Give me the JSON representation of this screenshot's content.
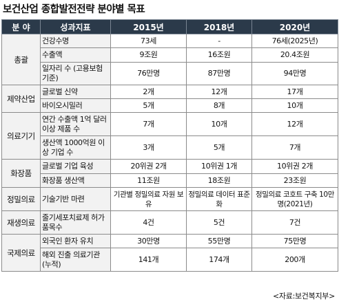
{
  "title": "보건산업 종합발전전략 분야별 목표",
  "headers": [
    "분 야",
    "성과지표",
    "2015년",
    "2018년",
    "2020년"
  ],
  "categories": [
    "총괄",
    "제약산업",
    "의료기기",
    "화장품",
    "정밀의료",
    "재생의료",
    "국제의료"
  ],
  "rows": [
    {
      "indicator": "건강수명",
      "y2015": "73세",
      "y2018": "-",
      "y2020": "76세(2025년)"
    },
    {
      "indicator": "수출액",
      "y2015": "9조원",
      "y2018": "16조원",
      "y2020": "20.4조원"
    },
    {
      "indicator": "일자리 수 (고용보험 기준)",
      "y2015": "76만명",
      "y2018": "87만명",
      "y2020": "94만명"
    },
    {
      "indicator": "글로벌 신약",
      "y2015": "2개",
      "y2018": "12개",
      "y2020": "17개"
    },
    {
      "indicator": "바이오시밀러",
      "y2015": "5개",
      "y2018": "8개",
      "y2020": "10개"
    },
    {
      "indicator": "연간 수출액 1억 달러 이상 제품 수",
      "y2015": "7개",
      "y2018": "10개",
      "y2020": "12개"
    },
    {
      "indicator": "생산액 1000억원 이상 기업 수",
      "y2015": "3개",
      "y2018": "5개",
      "y2020": "7개"
    },
    {
      "indicator": "글로벌 기업 육성",
      "y2015": "20위권 2개",
      "y2018": "10위권 1개",
      "y2020": "10위권 2개"
    },
    {
      "indicator": "화장품 생산액",
      "y2015": "11조원",
      "y2018": "18조원",
      "y2020": "23조원"
    },
    {
      "indicator": "기술기반 마련",
      "y2015": "기관별 정밀의료 자원 보유",
      "y2018": "정밀의료 데이터 표준화",
      "y2020": "정밀의료 코호트 구축 10만명(2021년)"
    },
    {
      "indicator": "줄기세포치료제 허가 품목수",
      "y2015": "4건",
      "y2018": "5건",
      "y2020": "7건"
    },
    {
      "indicator": "외국인 환자 유치",
      "y2015": "30만명",
      "y2018": "55만명",
      "y2020": "75만명"
    },
    {
      "indicator": "해외 진출 의료기관 (누적)",
      "y2015": "141개",
      "y2018": "174개",
      "y2020": "200개"
    }
  ],
  "source": "<자료:보건복지부>"
}
